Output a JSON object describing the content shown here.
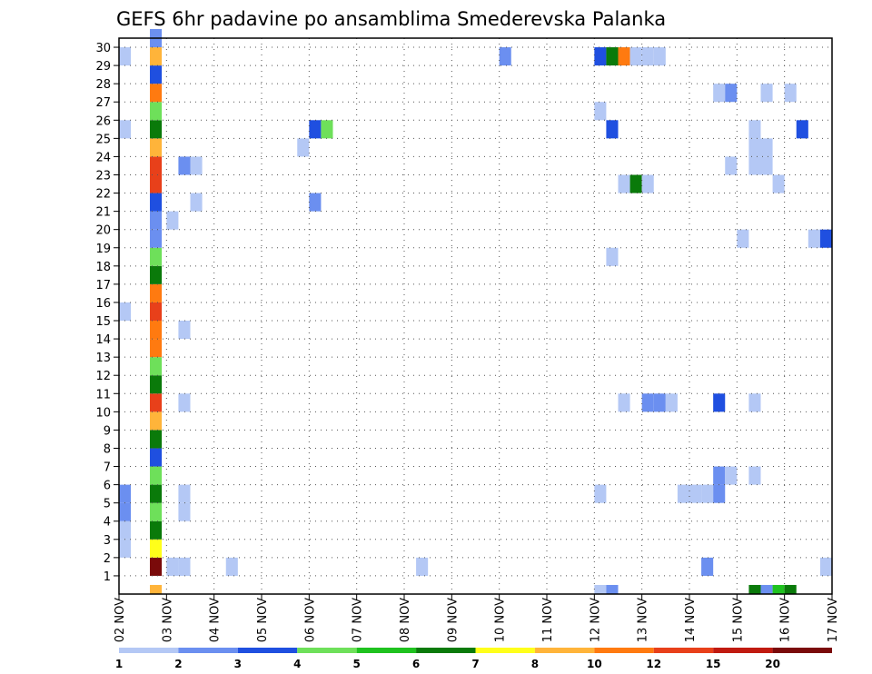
{
  "chart_data": {
    "type": "heatmap",
    "title": "GEFS 6hr padavine po ansamblima Smederevska Palanka",
    "y_ticks": [
      "1",
      "2",
      "3",
      "4",
      "5",
      "6",
      "7",
      "8",
      "9",
      "10",
      "11",
      "12",
      "13",
      "14",
      "15",
      "16",
      "17",
      "18",
      "19",
      "20",
      "21",
      "22",
      "23",
      "24",
      "25",
      "26",
      "27",
      "28",
      "29",
      "30"
    ],
    "x_ticks": [
      "02 NOV",
      "03 NOV",
      "04 NOV",
      "05 NOV",
      "06 NOV",
      "07 NOV",
      "08 NOV",
      "09 NOV",
      "10 NOV",
      "11 NOV",
      "12 NOV",
      "13 NOV",
      "14 NOV",
      "15 NOV",
      "16 NOV",
      "17 NOV"
    ],
    "xlim": [
      0,
      15
    ],
    "ylim": [
      0,
      30
    ],
    "steps_per_day": 4,
    "grid": true,
    "colorbar": {
      "labels": [
        "1",
        "2",
        "3",
        "4",
        "5",
        "6",
        "7",
        "8",
        "10",
        "12",
        "15",
        "20"
      ],
      "colors": [
        "#b4c8f5",
        "#6b8ff0",
        "#1f4fe0",
        "#6ee05a",
        "#1fc21f",
        "#0a7a0a",
        "#ffff1a",
        "#ffb43a",
        "#ff7a10",
        "#e8401a",
        "#c01a10",
        "#7a0a0a"
      ]
    },
    "ensemble_column": {
      "member_colors": [
        "#7a0a0a",
        "#ffff1a",
        "#0a7a0a",
        "#6ee05a",
        "#0a7a0a",
        "#6ee05a",
        "#1f4fe0",
        "#0a7a0a",
        "#ffb43a",
        "#e8401a",
        "#0a7a0a",
        "#6ee05a",
        "#ff7a10",
        "#ff7a10",
        "#e8401a",
        "#ff7a10",
        "#0a7a0a",
        "#6ee05a",
        "#6b8ff0",
        "#6b8ff0",
        "#1f4fe0",
        "#e8401a",
        "#e8401a",
        "#ffb43a",
        "#0a7a0a",
        "#6ee05a",
        "#ff7a10",
        "#1f4fe0",
        "#ffb43a",
        "#6b8ff0"
      ],
      "bottom_color": "#ffb43a"
    },
    "cells": [
      {
        "m": 1,
        "s": 4,
        "c": "#b4c8f5"
      },
      {
        "m": 1,
        "s": 5,
        "c": "#b4c8f5"
      },
      {
        "m": 1,
        "s": 9,
        "c": "#b4c8f5"
      },
      {
        "m": 1,
        "s": 25,
        "c": "#b4c8f5"
      },
      {
        "m": 1,
        "s": 49,
        "c": "#6b8ff0"
      },
      {
        "m": 1,
        "s": 59,
        "c": "#b4c8f5"
      },
      {
        "m": 2,
        "s": 0,
        "c": "#b4c8f5"
      },
      {
        "m": 3,
        "s": 0,
        "c": "#b4c8f5"
      },
      {
        "m": 4,
        "s": 0,
        "c": "#6b8ff0"
      },
      {
        "m": 4,
        "s": 5,
        "c": "#b4c8f5"
      },
      {
        "m": 5,
        "s": 0,
        "c": "#6b8ff0"
      },
      {
        "m": 5,
        "s": 5,
        "c": "#b4c8f5"
      },
      {
        "m": 5,
        "s": 40,
        "c": "#b4c8f5"
      },
      {
        "m": 5,
        "s": 47,
        "c": "#b4c8f5"
      },
      {
        "m": 5,
        "s": 48,
        "c": "#b4c8f5"
      },
      {
        "m": 5,
        "s": 49,
        "c": "#b4c8f5"
      },
      {
        "m": 5,
        "s": 50,
        "c": "#6b8ff0"
      },
      {
        "m": 6,
        "s": 50,
        "c": "#6b8ff0"
      },
      {
        "m": 6,
        "s": 51,
        "c": "#b4c8f5"
      },
      {
        "m": 6,
        "s": 53,
        "c": "#b4c8f5"
      },
      {
        "m": 10,
        "s": 5,
        "c": "#b4c8f5"
      },
      {
        "m": 10,
        "s": 42,
        "c": "#b4c8f5"
      },
      {
        "m": 10,
        "s": 44,
        "c": "#6b8ff0"
      },
      {
        "m": 10,
        "s": 45,
        "c": "#6b8ff0"
      },
      {
        "m": 10,
        "s": 46,
        "c": "#b4c8f5"
      },
      {
        "m": 10,
        "s": 50,
        "c": "#1f4fe0"
      },
      {
        "m": 10,
        "s": 53,
        "c": "#b4c8f5"
      },
      {
        "m": 14,
        "s": 5,
        "c": "#b4c8f5"
      },
      {
        "m": 15,
        "s": 0,
        "c": "#b4c8f5"
      },
      {
        "m": 18,
        "s": 41,
        "c": "#b4c8f5"
      },
      {
        "m": 19,
        "s": 52,
        "c": "#b4c8f5"
      },
      {
        "m": 19,
        "s": 58,
        "c": "#b4c8f5"
      },
      {
        "m": 19,
        "s": 59,
        "c": "#1f4fe0"
      },
      {
        "m": 20,
        "s": 4,
        "c": "#b4c8f5"
      },
      {
        "m": 21,
        "s": 6,
        "c": "#b4c8f5"
      },
      {
        "m": 21,
        "s": 16,
        "c": "#6b8ff0"
      },
      {
        "m": 22,
        "s": 42,
        "c": "#b4c8f5"
      },
      {
        "m": 22,
        "s": 43,
        "c": "#0a7a0a"
      },
      {
        "m": 22,
        "s": 44,
        "c": "#b4c8f5"
      },
      {
        "m": 22,
        "s": 55,
        "c": "#b4c8f5"
      },
      {
        "m": 23,
        "s": 5,
        "c": "#6b8ff0"
      },
      {
        "m": 23,
        "s": 6,
        "c": "#b4c8f5"
      },
      {
        "m": 23,
        "s": 51,
        "c": "#b4c8f5"
      },
      {
        "m": 23,
        "s": 53,
        "c": "#b4c8f5"
      },
      {
        "m": 23,
        "s": 54,
        "c": "#b4c8f5"
      },
      {
        "m": 24,
        "s": 15,
        "c": "#b4c8f5"
      },
      {
        "m": 24,
        "s": 53,
        "c": "#b4c8f5"
      },
      {
        "m": 24,
        "s": 54,
        "c": "#b4c8f5"
      },
      {
        "m": 25,
        "s": 0,
        "c": "#b4c8f5"
      },
      {
        "m": 25,
        "s": 16,
        "c": "#1f4fe0"
      },
      {
        "m": 25,
        "s": 17,
        "c": "#6ee05a"
      },
      {
        "m": 25,
        "s": 41,
        "c": "#1f4fe0"
      },
      {
        "m": 25,
        "s": 53,
        "c": "#b4c8f5"
      },
      {
        "m": 25,
        "s": 57,
        "c": "#1f4fe0"
      },
      {
        "m": 26,
        "s": 40,
        "c": "#b4c8f5"
      },
      {
        "m": 27,
        "s": 50,
        "c": "#b4c8f5"
      },
      {
        "m": 27,
        "s": 51,
        "c": "#6b8ff0"
      },
      {
        "m": 27,
        "s": 54,
        "c": "#b4c8f5"
      },
      {
        "m": 27,
        "s": 56,
        "c": "#b4c8f5"
      },
      {
        "m": 29,
        "s": 0,
        "c": "#b4c8f5"
      },
      {
        "m": 29,
        "s": 32,
        "c": "#6b8ff0"
      },
      {
        "m": 29,
        "s": 40,
        "c": "#1f4fe0"
      },
      {
        "m": 29,
        "s": 41,
        "c": "#0a7a0a"
      },
      {
        "m": 29,
        "s": 42,
        "c": "#ff7a10"
      },
      {
        "m": 29,
        "s": 43,
        "c": "#b4c8f5"
      },
      {
        "m": 29,
        "s": 44,
        "c": "#b4c8f5"
      },
      {
        "m": 29,
        "s": 45,
        "c": "#b4c8f5"
      },
      {
        "m": 0,
        "s": 40,
        "c": "#b4c8f5"
      },
      {
        "m": 0,
        "s": 41,
        "c": "#6b8ff0"
      },
      {
        "m": 0,
        "s": 53,
        "c": "#0a7a0a"
      },
      {
        "m": 0,
        "s": 54,
        "c": "#6b8ff0"
      },
      {
        "m": 0,
        "s": 55,
        "c": "#1fc21f"
      },
      {
        "m": 0,
        "s": 56,
        "c": "#0a7a0a"
      }
    ]
  }
}
